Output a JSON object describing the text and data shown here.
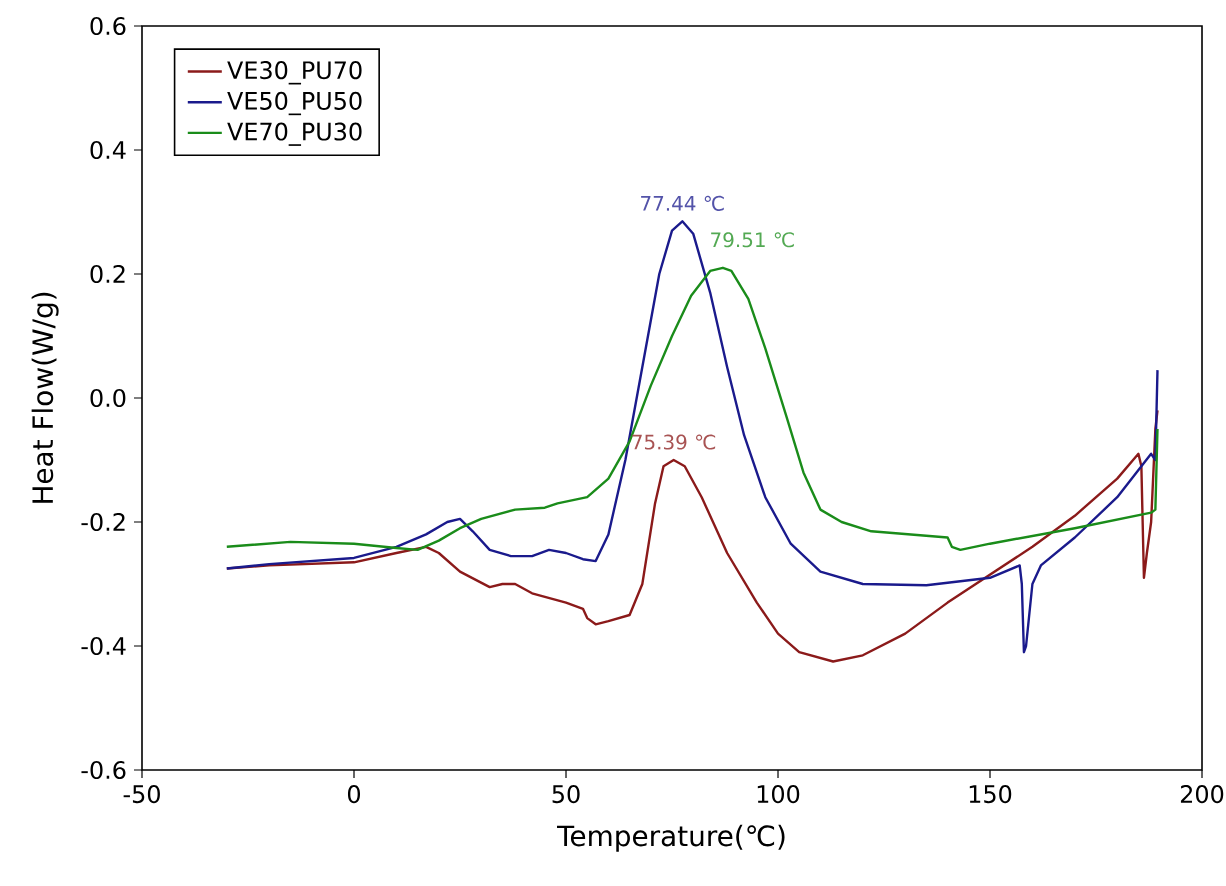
{
  "chart_data": {
    "type": "line",
    "xlabel": "Temperature(℃)",
    "ylabel": "Heat Flow(W/g)",
    "xlim": [
      -50,
      200
    ],
    "ylim": [
      -0.6,
      0.6
    ],
    "xticks": [
      -50,
      0,
      50,
      100,
      150,
      200
    ],
    "yticks": [
      -0.6,
      -0.4,
      -0.2,
      {
        "value": 0,
        "label": "0.0"
      },
      0.2,
      0.4,
      0.6
    ],
    "grid": false,
    "legend": "top left",
    "marker": "none",
    "line_style": "solid",
    "series": [
      {
        "name": "VE30_PU70",
        "color": "#8b1a1a",
        "x": [
          -30,
          -20,
          0,
          10,
          17,
          20,
          25,
          32,
          35,
          38,
          42,
          50,
          54,
          55,
          57,
          60,
          65,
          68,
          71,
          73,
          75.39,
          78,
          82,
          88,
          95,
          100,
          105,
          113,
          120,
          130,
          140,
          150,
          160,
          170,
          180,
          185,
          185.7,
          186.3,
          187,
          188,
          189,
          189.5
        ],
        "values": [
          -0.275,
          -0.27,
          -0.265,
          -0.25,
          -0.24,
          -0.25,
          -0.28,
          -0.305,
          -0.3,
          -0.3,
          -0.315,
          -0.33,
          -0.34,
          -0.355,
          -0.365,
          -0.36,
          -0.35,
          -0.3,
          -0.17,
          -0.11,
          -0.1,
          -0.11,
          -0.16,
          -0.25,
          -0.33,
          -0.38,
          -0.41,
          -0.425,
          -0.415,
          -0.38,
          -0.33,
          -0.285,
          -0.24,
          -0.19,
          -0.13,
          -0.09,
          -0.11,
          -0.29,
          -0.25,
          -0.2,
          -0.05,
          -0.02
        ]
      },
      {
        "name": "VE50_PU50",
        "color": "#1a1a8c",
        "x": [
          -30,
          -20,
          0,
          10,
          17,
          22,
          25,
          28,
          32,
          37,
          42,
          46,
          50,
          54,
          57,
          60,
          64,
          68,
          72,
          75,
          77.44,
          80,
          84,
          88,
          92,
          97,
          103,
          110,
          120,
          135,
          150,
          157,
          157.5,
          158,
          158.5,
          160,
          162,
          170,
          180,
          188,
          189,
          189.5
        ],
        "values": [
          -0.275,
          -0.268,
          -0.258,
          -0.24,
          -0.22,
          -0.2,
          -0.195,
          -0.215,
          -0.245,
          -0.255,
          -0.255,
          -0.245,
          -0.25,
          -0.26,
          -0.263,
          -0.22,
          -0.1,
          0.05,
          0.2,
          0.27,
          0.285,
          0.265,
          0.17,
          0.05,
          -0.06,
          -0.16,
          -0.235,
          -0.28,
          -0.3,
          -0.302,
          -0.29,
          -0.27,
          -0.3,
          -0.41,
          -0.4,
          -0.3,
          -0.27,
          -0.225,
          -0.16,
          -0.09,
          -0.1,
          0.045
        ]
      },
      {
        "name": "VE70_PU30",
        "color": "#1a8c1a",
        "x": [
          -30,
          -15,
          0,
          10,
          15,
          20,
          25,
          30,
          38,
          45,
          48,
          55,
          60,
          65,
          70,
          75,
          79.51,
          84,
          87,
          89,
          93,
          97,
          102,
          106,
          110,
          115,
          122,
          140,
          141,
          143,
          150,
          170,
          188,
          189,
          189.5
        ],
        "values": [
          -0.24,
          -0.232,
          -0.235,
          -0.242,
          -0.245,
          -0.23,
          -0.21,
          -0.195,
          -0.18,
          -0.177,
          -0.17,
          -0.16,
          -0.13,
          -0.07,
          0.02,
          0.1,
          0.165,
          0.205,
          0.21,
          0.205,
          0.16,
          0.08,
          -0.03,
          -0.12,
          -0.18,
          -0.2,
          -0.215,
          -0.225,
          -0.24,
          -0.245,
          -0.235,
          -0.21,
          -0.185,
          -0.18,
          -0.05
        ]
      }
    ],
    "annotations": [
      {
        "text": "75.39 ℃",
        "x": 75.39,
        "y": -0.1
      },
      {
        "text": "77.44 ℃",
        "x": 77.44,
        "y": 0.285
      },
      {
        "text": "79.51 ℃",
        "x": 79.51,
        "y": 0.165
      }
    ]
  }
}
